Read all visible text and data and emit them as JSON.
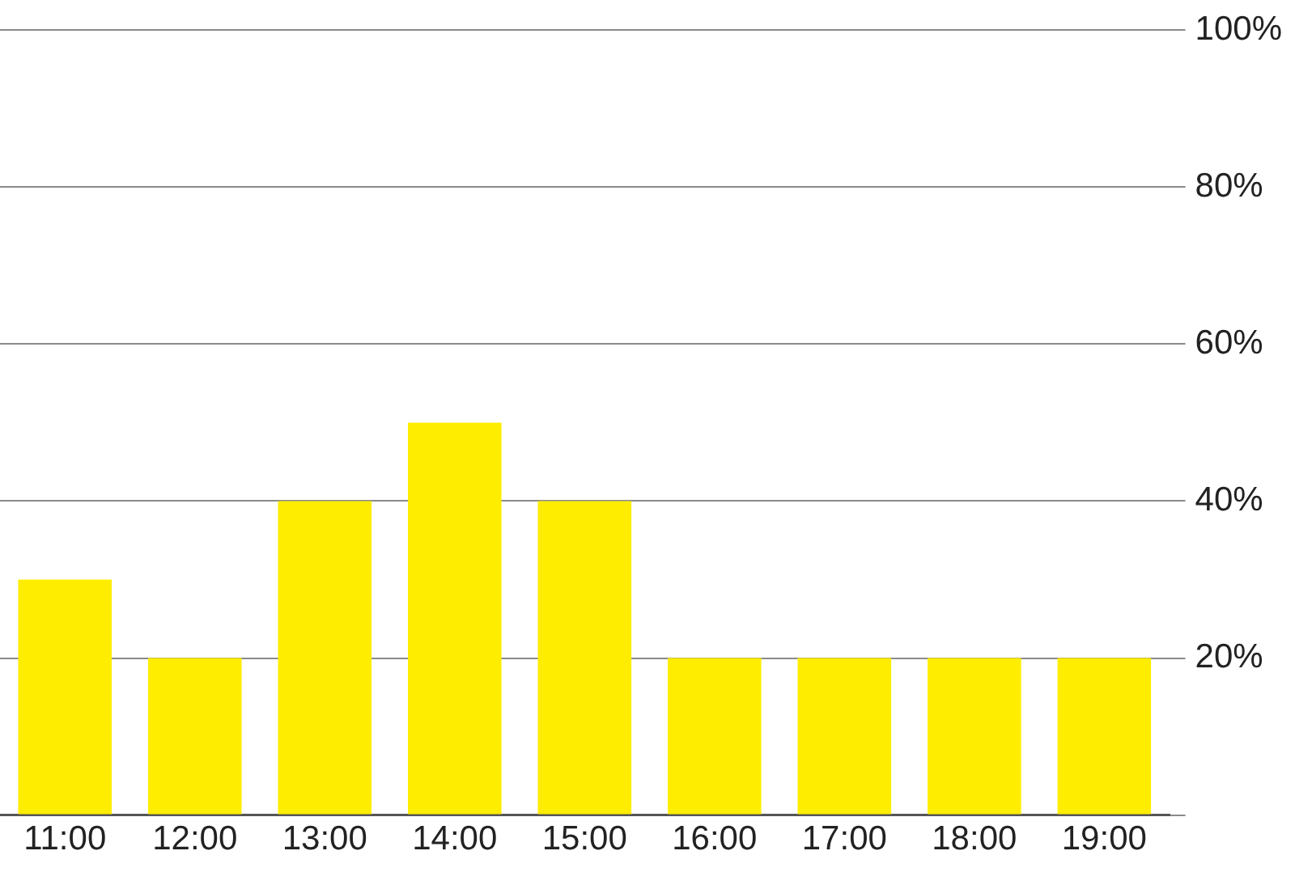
{
  "chart_data": {
    "type": "bar",
    "categories": [
      "11:00",
      "12:00",
      "13:00",
      "14:00",
      "15:00",
      "16:00",
      "17:00",
      "18:00",
      "19:00"
    ],
    "values": [
      30,
      20,
      40,
      50,
      40,
      20,
      20,
      20,
      20
    ],
    "color": "#ffed00",
    "ylim": [
      0,
      100
    ],
    "yticks": [
      {
        "value": 0,
        "label": null
      },
      {
        "value": 20,
        "label": "20%"
      },
      {
        "value": 40,
        "label": "40%"
      },
      {
        "value": 60,
        "label": "60%"
      },
      {
        "value": 80,
        "label": "80%"
      },
      {
        "value": 100,
        "label": "100%"
      }
    ],
    "grid": "y",
    "legend": false
  }
}
